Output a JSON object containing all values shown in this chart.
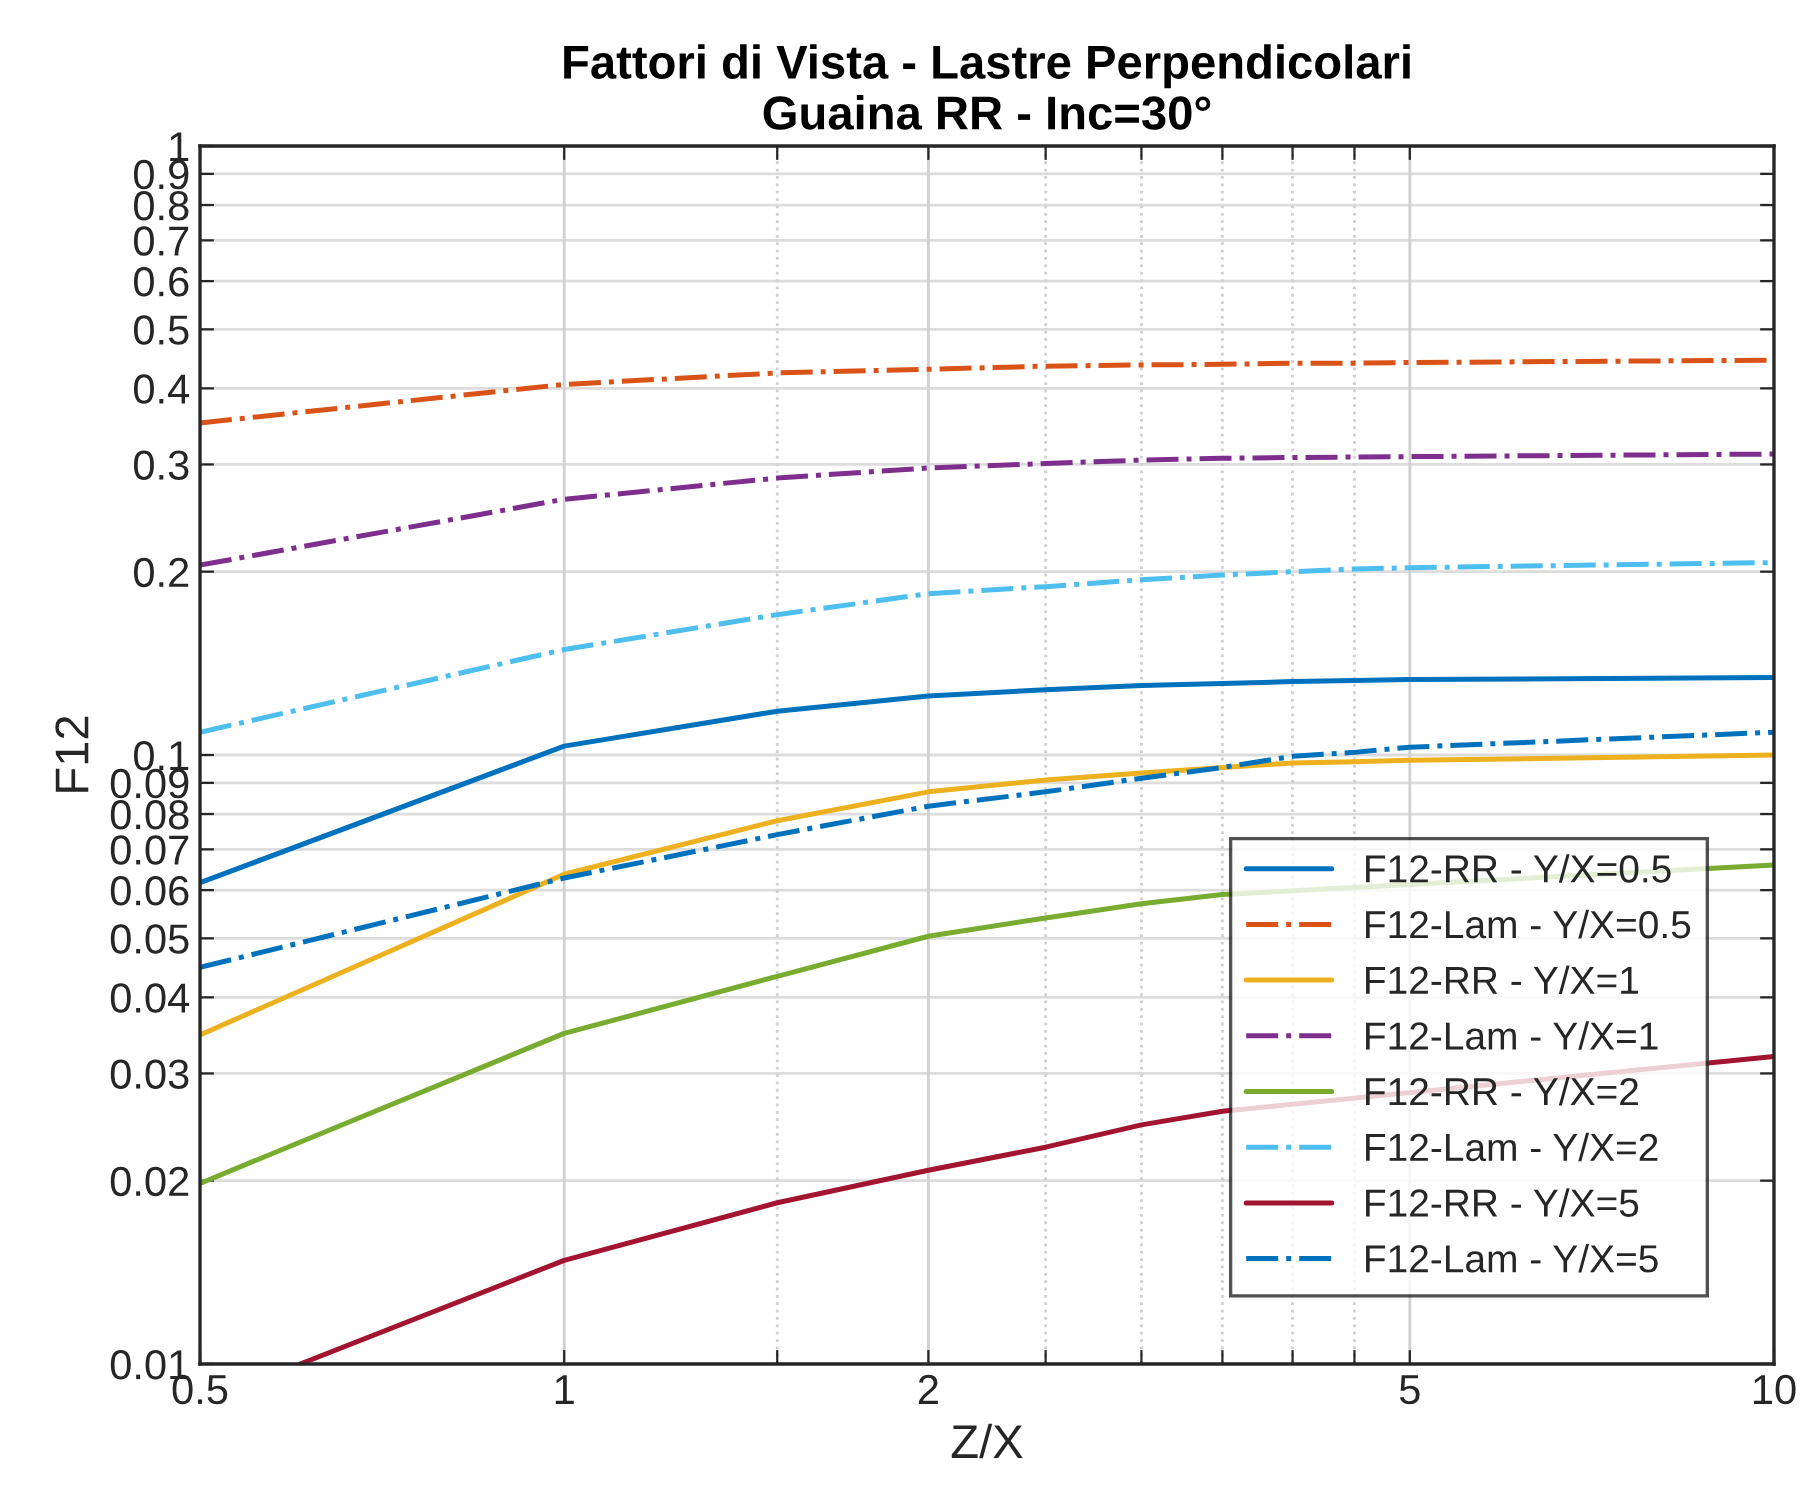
{
  "chart_data": {
    "type": "line",
    "title": "Fattori di Vista - Lastre Perpendicolari\nGuaina RR - Inc=30°",
    "xlabel": "Z/X",
    "ylabel": "F12",
    "x": [
      0.5,
      1,
      1.5,
      2,
      2.5,
      3,
      3.5,
      4,
      4.5,
      5,
      10
    ],
    "series": [
      {
        "name": "F12-RR - Y/X=0.5",
        "color": "#0072bd",
        "line_style": "solid",
        "values": [
          0.0617,
          0.1034,
          0.118,
          0.125,
          0.128,
          0.13,
          0.131,
          0.132,
          0.1325,
          0.133,
          0.134
        ]
      },
      {
        "name": "F12-Lam - Y/X=0.5",
        "color": "#d95319",
        "line_style": "dashdot",
        "values": [
          0.351,
          0.406,
          0.424,
          0.43,
          0.435,
          0.437,
          0.438,
          0.44,
          0.44,
          0.441,
          0.445
        ]
      },
      {
        "name": "F12-RR - Y/X=1",
        "color": "#edb120",
        "line_style": "solid",
        "values": [
          0.0347,
          0.0637,
          0.078,
          0.087,
          0.091,
          0.0934,
          0.0954,
          0.097,
          0.0975,
          0.098,
          0.1
        ]
      },
      {
        "name": "F12-Lam - Y/X=1",
        "color": "#7e2f8e",
        "line_style": "dashdot",
        "values": [
          0.205,
          0.263,
          0.285,
          0.296,
          0.301,
          0.305,
          0.307,
          0.308,
          0.3085,
          0.309,
          0.312
        ]
      },
      {
        "name": "F12-RR - Y/X=2",
        "color": "#77ac30",
        "line_style": "solid",
        "x": [
          0.5,
          1,
          1.5,
          2,
          2.5,
          3,
          3.5,
          10
        ],
        "values": [
          0.0198,
          0.0349,
          0.0433,
          0.0504,
          0.054,
          0.057,
          0.059,
          0.066
        ]
      },
      {
        "name": "F12-Lam - Y/X=2",
        "color": "#4dbeee",
        "line_style": "dashdot",
        "values": [
          0.109,
          0.149,
          0.17,
          0.184,
          0.189,
          0.194,
          0.1975,
          0.2,
          0.202,
          0.203,
          0.207
        ]
      },
      {
        "name": "F12-RR - Y/X=5",
        "color": "#a2142f",
        "line_style": "solid",
        "x": [
          0.605,
          1,
          1.5,
          2,
          2.5,
          3,
          3.5,
          10
        ],
        "values": [
          0.01,
          0.0148,
          0.0184,
          0.0208,
          0.0227,
          0.0247,
          0.026,
          0.032
        ]
      },
      {
        "name": "F12-Lam - Y/X=5",
        "color": "#0072bd",
        "line_style": "dashdot",
        "values": [
          0.0448,
          0.0628,
          0.074,
          0.0824,
          0.087,
          0.0916,
          0.0954,
          0.0995,
          0.101,
          0.103,
          0.109
        ]
      }
    ],
    "log": "xy",
    "xlim": [
      0.5,
      10
    ],
    "ylim": [
      0.01,
      1
    ],
    "xticks": [
      0.5,
      1,
      {
        "value": 1.5,
        "label": null
      },
      2,
      {
        "value": 2.5,
        "label": null
      },
      {
        "value": 3,
        "label": null
      },
      {
        "value": 3.5,
        "label": null
      },
      {
        "value": 4,
        "label": null
      },
      {
        "value": 4.5,
        "label": null
      },
      5,
      10
    ],
    "yticks": [
      0.01,
      0.02,
      0.03,
      0.04,
      0.05,
      0.06,
      0.07,
      0.08,
      0.09,
      0.1,
      0.2,
      0.3,
      0.4,
      0.5,
      0.6,
      0.7,
      0.8,
      0.9,
      1
    ],
    "grid": true,
    "legend": "bottom right",
    "marker": "none"
  }
}
